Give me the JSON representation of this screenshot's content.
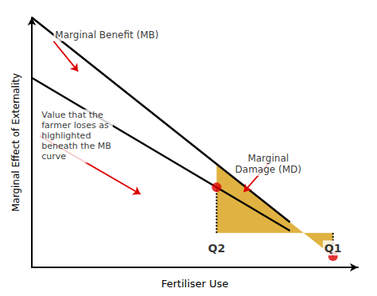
{
  "chart_data": {
    "type": "line",
    "xlabel": "Fertiliser Use",
    "ylabel": "Marginal Effect of Externality",
    "xlim": [
      0,
      12
    ],
    "ylim": [
      -1.6,
      10
    ],
    "tick_labels": false,
    "grid": false,
    "series": [
      {
        "type": "line",
        "color": "#000000",
        "line_style": "solid",
        "x": [
          0,
          9.5
        ],
        "values": [
          10.0,
          0.5
        ]
      },
      {
        "type": "line",
        "color": "#000000",
        "line_style": "solid",
        "x": [
          0,
          9.5
        ],
        "values": [
          7.2,
          0.1
        ]
      },
      {
        "type": "area",
        "color": "#DAA520",
        "x": [
          6.8,
          11.083333333333334
        ],
        "values": [
          3.2,
          -1.083333333333334
        ]
      },
      {
        "type": "line",
        "color": "#000000",
        "line_style": "dotted",
        "x": [
          11.083333333333334,
          11.083333333333334
        ],
        "values": [
          0,
          -1.083333333333334
        ]
      },
      {
        "type": "line",
        "color": "#000000",
        "line_style": "dotted",
        "x": [
          6.8,
          6.8
        ],
        "values": [
          0,
          2.1178947368421053
        ]
      },
      {
        "type": "scatter",
        "color": "#dd0000",
        "x": [
          11.083333333333334,
          6.8
        ],
        "values": [
          -1.083333333333334,
          2.1178947368421053
        ]
      }
    ],
    "annotations": [
      {
        "text": "Q1",
        "x": 11.083333333333334,
        "y": -0.35
      },
      {
        "text": "Q2",
        "x": 6.8,
        "y": -0.35
      },
      {
        "text": "Marginal Benefit (MB)",
        "x": 0.8,
        "y": 8.9,
        "arrow_to": [
          1.7,
          7.5
        ],
        "color": "#dd0000"
      },
      {
        "text": "Marginal\nDamage (MD)",
        "x": 8.7,
        "y": 3.2,
        "arrow_to": [
          7.8,
          1.9
        ],
        "color": "#dd0000"
      },
      {
        "text": "Value that the\nfarmer loses as\nhighlighted\nbeneath the MB\ncurve",
        "x": 0.3,
        "y": 4.5,
        "arrow_to": [
          4.0,
          1.8
        ],
        "color": "#dd0000"
      }
    ]
  }
}
